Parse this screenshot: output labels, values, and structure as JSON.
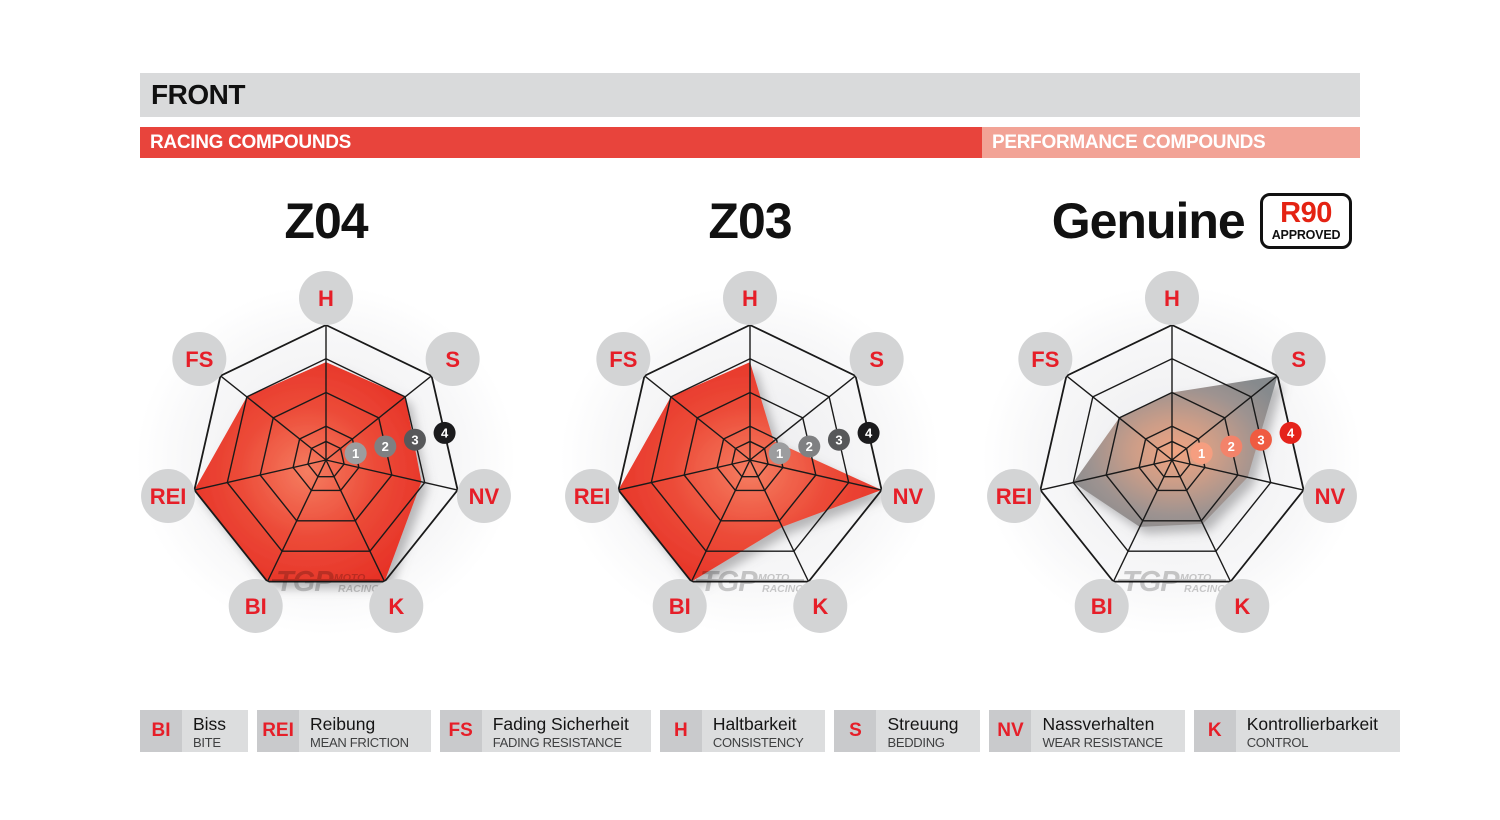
{
  "header": {
    "front": "FRONT",
    "racing": "RACING COMPOUNDS",
    "performance": "PERFORMANCE COMPOUNDS"
  },
  "r90_badge": {
    "top": "R90",
    "bottom": "APPROVED"
  },
  "watermark": {
    "brand": "TGP",
    "moto": "MOTO",
    "racing": "RACING"
  },
  "chart_data": [
    {
      "type": "radar",
      "title": "Z04",
      "group": "RACING COMPOUNDS",
      "categories": [
        "H",
        "S",
        "NV",
        "K",
        "BI",
        "REI",
        "FS"
      ],
      "values": [
        2.9,
        3.0,
        2.9,
        4.0,
        4.0,
        4.0,
        3.0
      ],
      "max": 4,
      "scale_ticks": [
        "1",
        "2",
        "3",
        "4"
      ],
      "tick_colors": [
        "#9c9d9f",
        "#7f8082",
        "#57585a",
        "#1b1b1d"
      ],
      "fill_stops": [
        [
          "0%",
          "#f57d61"
        ],
        [
          "50%",
          "#ec4b38"
        ],
        [
          "100%",
          "#e62f25"
        ]
      ]
    },
    {
      "type": "radar",
      "title": "Z03",
      "group": "RACING COMPOUNDS",
      "categories": [
        "H",
        "S",
        "NV",
        "K",
        "BI",
        "REI",
        "FS"
      ],
      "values": [
        2.9,
        0.9,
        4.0,
        2.2,
        4.0,
        4.0,
        3.0
      ],
      "max": 4,
      "scale_ticks": [
        "1",
        "2",
        "3",
        "4"
      ],
      "tick_colors": [
        "#9c9d9f",
        "#7f8082",
        "#57585a",
        "#1b1b1d"
      ],
      "fill_stops": [
        [
          "0%",
          "#f57d61"
        ],
        [
          "50%",
          "#ec4b38"
        ],
        [
          "100%",
          "#e62f25"
        ]
      ]
    },
    {
      "type": "radar",
      "title": "Genuine",
      "group": "PERFORMANCE COMPOUNDS",
      "approved": "R90 APPROVED",
      "categories": [
        "H",
        "S",
        "NV",
        "K",
        "BI",
        "REI",
        "FS"
      ],
      "values": [
        2.0,
        4.0,
        2.3,
        2.1,
        2.2,
        3.0,
        2.0
      ],
      "max": 4,
      "scale_ticks": [
        "1",
        "2",
        "3",
        "4"
      ],
      "tick_colors": [
        "#f59e80",
        "#f3836a",
        "#ef5b41",
        "#e5231b"
      ],
      "fill_stops": [
        [
          "0%",
          "#f0a381"
        ],
        [
          "35%",
          "#cb9d88"
        ],
        [
          "70%",
          "#9e9390"
        ],
        [
          "100%",
          "#868a8d"
        ]
      ]
    }
  ],
  "legend": [
    {
      "abbr": "BI",
      "term": "Biss",
      "en": "BITE"
    },
    {
      "abbr": "REI",
      "term": "Reibung",
      "en": "MEAN FRICTION"
    },
    {
      "abbr": "FS",
      "term": "Fading Sicherheit",
      "en": "FADING RESISTANCE"
    },
    {
      "abbr": "H",
      "term": "Haltbarkeit",
      "en": "CONSISTENCY"
    },
    {
      "abbr": "S",
      "term": "Streuung",
      "en": "BEDDING"
    },
    {
      "abbr": "NV",
      "term": "Nassverhalten",
      "en": "WEAR RESISTANCE"
    },
    {
      "abbr": "K",
      "term": "Kontrollierbarkeit",
      "en": "CONTROL"
    }
  ],
  "style": {
    "bar_gray": "#d9dadb",
    "bar_red": "#e8443c",
    "bar_salmon": "#f2a396",
    "web_stroke": "#1a1a1a",
    "axis_circle_gray": "#d3d4d5",
    "axis_label_red": "#e61e28",
    "badge_text": "#ffffff",
    "shadow_color": "#77787a",
    "glow_gray": "#ececee"
  }
}
